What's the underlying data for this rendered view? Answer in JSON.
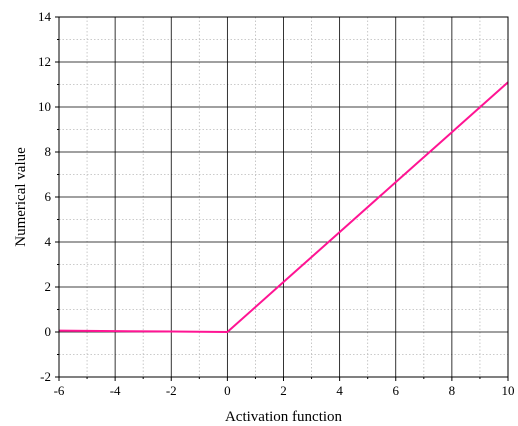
{
  "chart_data": {
    "type": "line",
    "title": "",
    "xlabel": "Activation function",
    "ylabel": "Numerical value",
    "xlim": [
      -6,
      10
    ],
    "ylim": [
      -2,
      14
    ],
    "xticks": [
      -6,
      -4,
      -2,
      0,
      2,
      4,
      6,
      8,
      10
    ],
    "yticks": [
      -2,
      0,
      2,
      4,
      6,
      8,
      10,
      12,
      14
    ],
    "x_tick_labels": [
      "-6",
      "-4",
      "-2",
      "0",
      "2",
      "4",
      "6",
      "8",
      "10"
    ],
    "y_tick_labels": [
      "-2",
      "0",
      "2",
      "4",
      "6",
      "8",
      "10",
      "12",
      "14"
    ],
    "grid": true,
    "legend": "none",
    "series": [
      {
        "color": "#ff1493",
        "x": [
          -6,
          -4,
          -2,
          0,
          2,
          4,
          6,
          8,
          10
        ],
        "y": [
          0.06,
          0.04,
          0.02,
          0.0,
          2.22,
          4.44,
          6.66,
          8.88,
          11.1
        ]
      }
    ]
  }
}
